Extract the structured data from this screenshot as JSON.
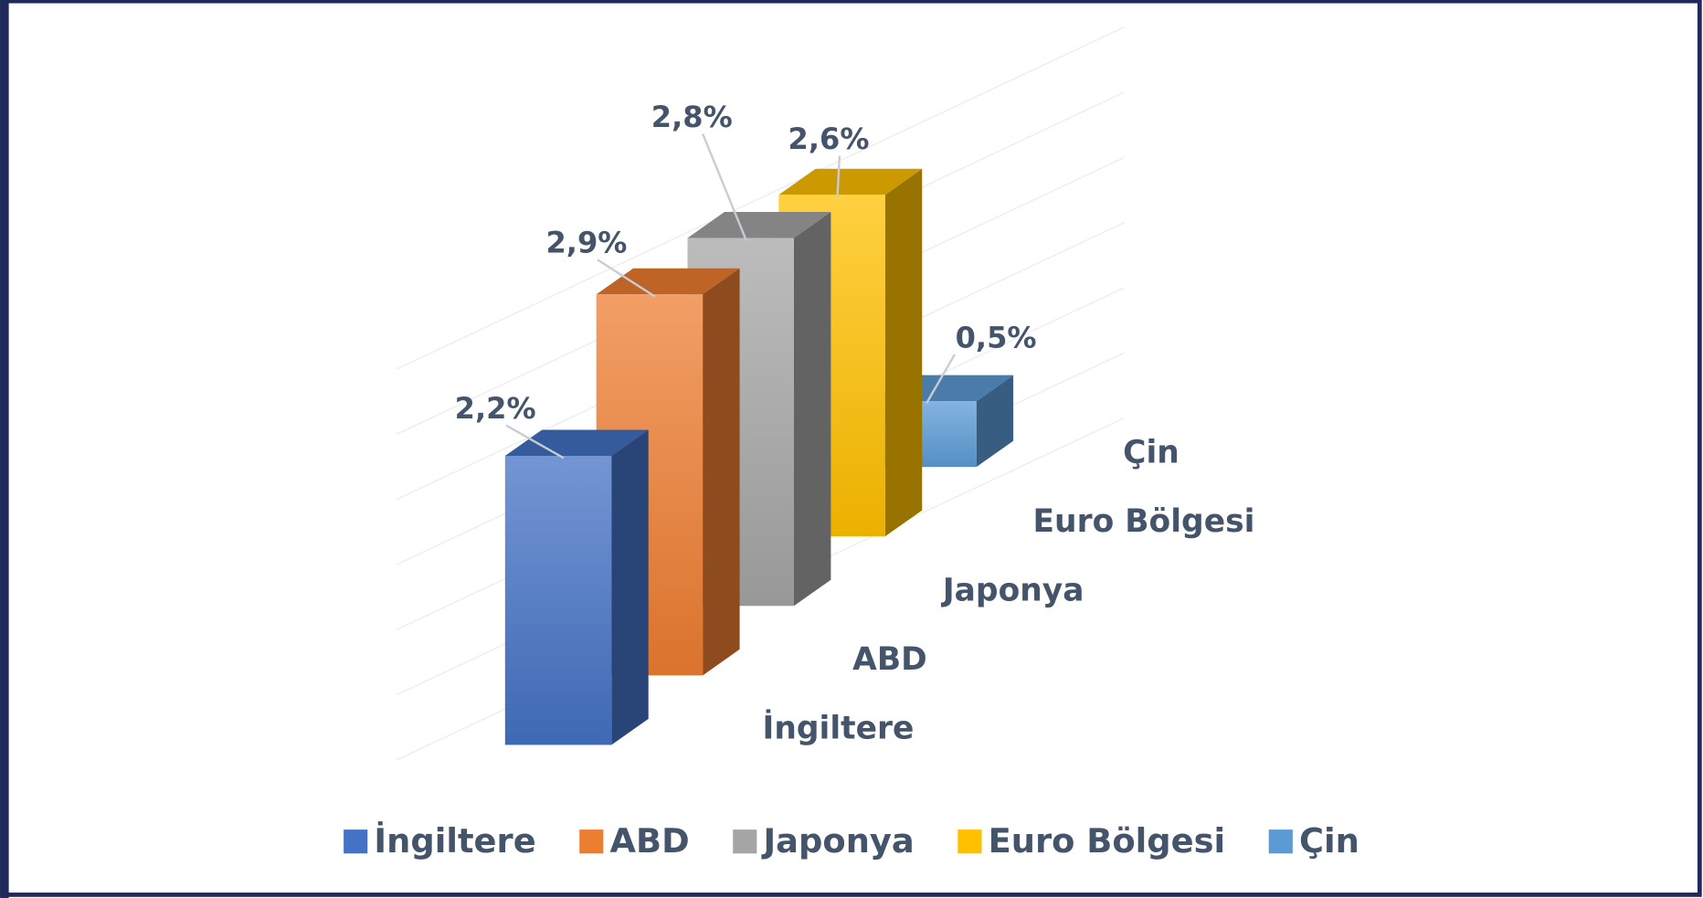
{
  "chart_data": {
    "type": "bar3d",
    "categories": [
      "İngiltere",
      "ABD",
      "Japonya",
      "Euro Bölgesi",
      "Çin"
    ],
    "values": [
      2.2,
      2.9,
      2.8,
      2.6,
      0.5
    ],
    "value_labels": [
      "2,2%",
      "2,9%",
      "2,8%",
      "2,6%",
      "0,5%"
    ],
    "colors": [
      "#4472c4",
      "#ed7d31",
      "#a5a5a5",
      "#ffc000",
      "#5b9bd5"
    ],
    "legend": "bottom"
  }
}
